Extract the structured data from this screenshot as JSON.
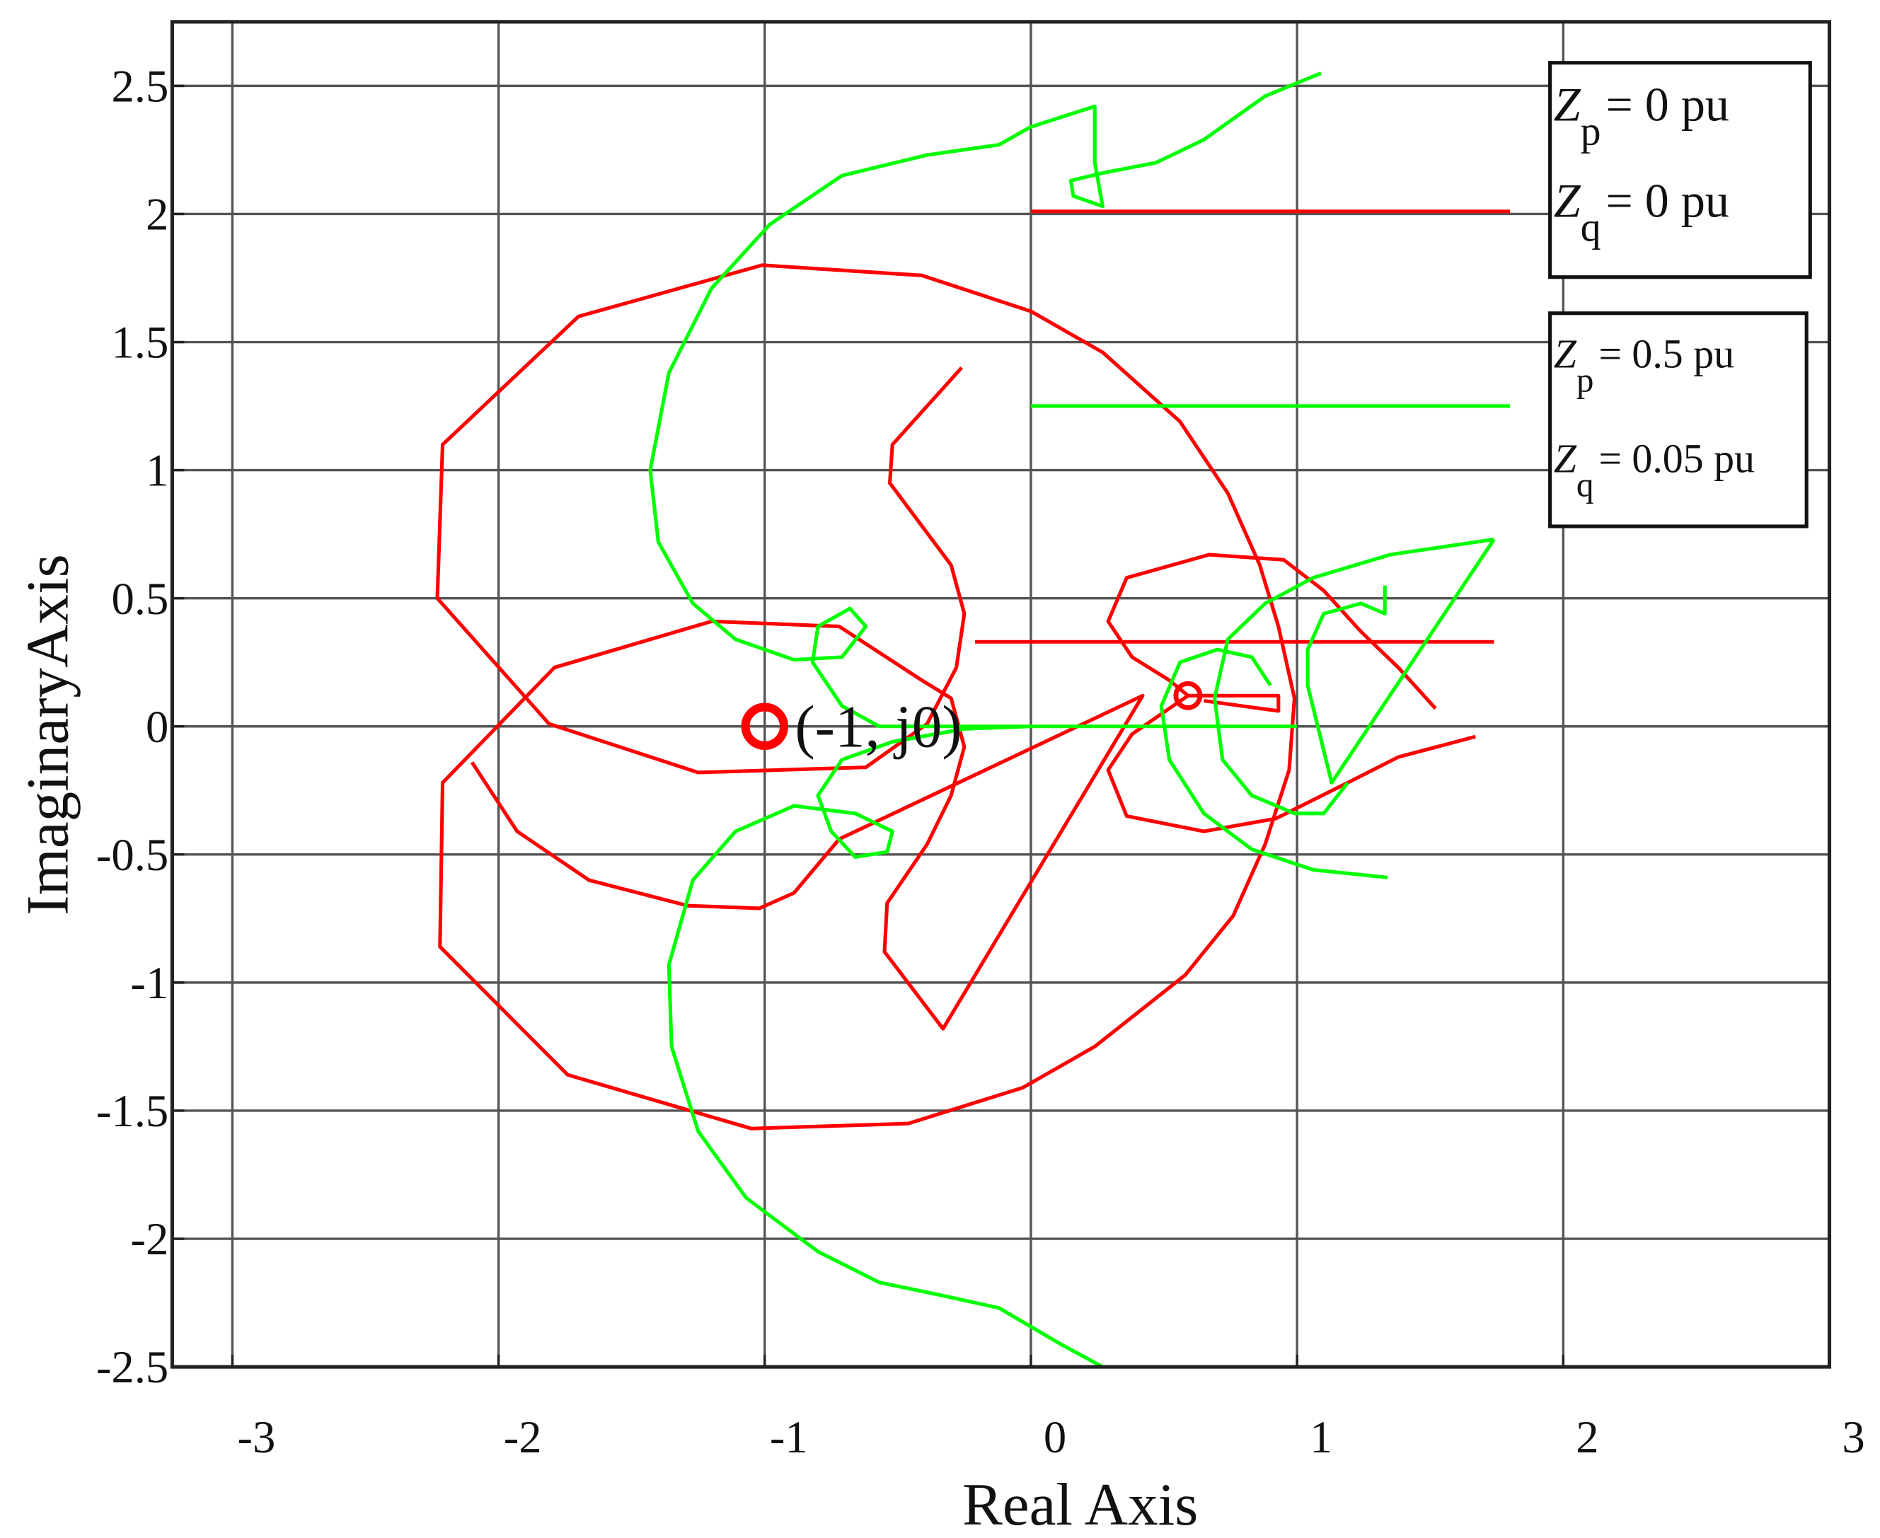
{
  "chart_data": {
    "type": "line",
    "xlabel": "Real Axis",
    "ylabel": "ImaginaryAxis",
    "xlim": [
      -3.226,
      3
    ],
    "ylim": [
      -2.5,
      2.75
    ],
    "xticks": [
      -3,
      -2,
      -1,
      0,
      1,
      2,
      3
    ],
    "yticks": [
      -2.5,
      -2,
      -1.5,
      -1,
      -0.5,
      0,
      0.5,
      1,
      1.5,
      2,
      2.5
    ],
    "grid": true,
    "series": [
      {
        "color": "#ff0000",
        "x": [
          0,
          1.8,
          null,
          -0.26,
          -0.52,
          -0.53,
          -0.3,
          -0.25,
          -0.28,
          -0.39,
          -0.62,
          -1.25,
          -1.81,
          -2.23,
          -2.21,
          -1.7,
          -1.01,
          -0.41,
          0,
          0.27,
          0.56,
          0.74,
          0.86,
          0.93,
          0.99,
          0.97,
          0.88,
          0.76,
          0.58,
          0.24,
          -0.03,
          -0.46,
          -1.05,
          -1.74,
          -2.22,
          -2.21,
          -1.79,
          -1.2,
          -0.72,
          -0.41,
          -0.3,
          -0.25,
          -0.3,
          -0.39,
          -0.54,
          -0.55,
          -0.33,
          0.42,
          -0.72,
          -0.89,
          -1.02,
          -1.29,
          -1.66,
          -1.93,
          -2.1,
          null,
          -0.21,
          1.74,
          null,
          1.52,
          1.38,
          1.24,
          1.1,
          0.95,
          0.67,
          0.36,
          0.29,
          0.38,
          0.52,
          0.59,
          0.93,
          0.93,
          0.65,
          null,
          1.67,
          1.38,
          1.19,
          0.92,
          0.65,
          0.36,
          0.29,
          0.38,
          0.59
        ],
        "y": [
          2.01,
          2.01,
          null,
          1.4,
          1.1,
          0.95,
          0.63,
          0.44,
          0.23,
          0.01,
          -0.16,
          -0.18,
          0.01,
          0.5,
          1.1,
          1.6,
          1.8,
          1.76,
          1.62,
          1.46,
          1.19,
          0.91,
          0.63,
          0.39,
          0.11,
          -0.17,
          -0.46,
          -0.74,
          -0.97,
          -1.25,
          -1.41,
          -1.55,
          -1.57,
          -1.36,
          -0.86,
          -0.22,
          0.23,
          0.41,
          0.39,
          0.18,
          0.11,
          -0.08,
          -0.27,
          -0.46,
          -0.69,
          -0.88,
          -1.18,
          0.12,
          -0.44,
          -0.65,
          -0.71,
          -0.7,
          -0.6,
          -0.41,
          -0.14,
          null,
          0.33,
          0.33,
          null,
          0.07,
          0.23,
          0.37,
          0.53,
          0.65,
          0.67,
          0.58,
          0.41,
          0.27,
          0.18,
          0.12,
          0.12,
          0.06,
          0.1,
          null,
          -0.04,
          -0.12,
          -0.22,
          -0.36,
          -0.41,
          -0.35,
          -0.17,
          -0.03,
          0.12
        ]
      },
      {
        "color": "#00ff00",
        "x": [
          0,
          1.8,
          null,
          1.09,
          0.88,
          0.65,
          0.47,
          0.27,
          0.15,
          0.16,
          0.27,
          0.24,
          0.24,
          0,
          -0.12,
          -0.39,
          -0.71,
          -0.98,
          -1.2,
          -1.36,
          -1.43,
          -1.4,
          -1.27,
          -1.11,
          -0.89,
          -0.71,
          -0.62,
          -0.68,
          -0.8,
          -0.82,
          -0.71,
          -0.57,
          1.0,
          null,
          0.27,
          0.11,
          -0.12,
          -0.34,
          -0.57,
          -0.8,
          -1.07,
          -1.25,
          -1.35,
          -1.36,
          -1.27,
          -1.11,
          -0.89,
          -0.66,
          -0.52,
          -0.54,
          -0.66,
          -0.75,
          -0.8,
          -0.71,
          -0.52,
          -0.25,
          0,
          null,
          1.34,
          1.06,
          0.83,
          0.65,
          0.52,
          0.49,
          0.56,
          0.7,
          0.83,
          0.9,
          null,
          1.74,
          1.35,
          1.06,
          0.88,
          0.74,
          0.69,
          0.72,
          0.83,
          0.99,
          1.1,
          1.19,
          null,
          1.33,
          1.33,
          1.24,
          1.1,
          1.04,
          1.04,
          1.13,
          1.74
        ],
        "y": [
          1.25,
          1.25,
          null,
          2.55,
          2.46,
          2.29,
          2.2,
          2.16,
          2.13,
          2.07,
          2.03,
          2.2,
          2.42,
          2.34,
          2.27,
          2.23,
          2.15,
          1.96,
          1.71,
          1.38,
          1.0,
          0.72,
          0.48,
          0.34,
          0.26,
          0.27,
          0.39,
          0.46,
          0.39,
          0.25,
          0.08,
          0,
          0,
          null,
          -2.5,
          -2.41,
          -2.27,
          -2.22,
          -2.17,
          -2.05,
          -1.84,
          -1.58,
          -1.25,
          -0.93,
          -0.6,
          -0.41,
          -0.31,
          -0.34,
          -0.41,
          -0.49,
          -0.51,
          -0.41,
          -0.27,
          -0.13,
          -0.06,
          -0.01,
          0,
          null,
          -0.59,
          -0.56,
          -0.48,
          -0.34,
          -0.13,
          0.08,
          0.25,
          0.3,
          0.27,
          0.16,
          null,
          0.73,
          0.67,
          0.58,
          0.48,
          0.34,
          0.11,
          -0.13,
          -0.27,
          -0.34,
          -0.34,
          -0.22,
          null,
          0.55,
          0.44,
          0.48,
          0.44,
          0.3,
          0.16,
          -0.22,
          0.73
        ]
      }
    ],
    "points": [
      {
        "x": -1,
        "y": 0,
        "label": "(-1, j0)"
      },
      {
        "x": 0.59,
        "y": 0.12
      }
    ],
    "legend": [
      [
        {
          "base": "Z",
          "sub": "p",
          "text": "= 0 pu"
        },
        {
          "base": "Z",
          "sub": "q",
          "text": "= 0 pu"
        }
      ],
      [
        {
          "base": "Z",
          "sub": "p",
          "text": "= 0.5 pu"
        },
        {
          "base": "Z",
          "sub": "q",
          "text": "= 0.05 pu"
        }
      ]
    ]
  }
}
